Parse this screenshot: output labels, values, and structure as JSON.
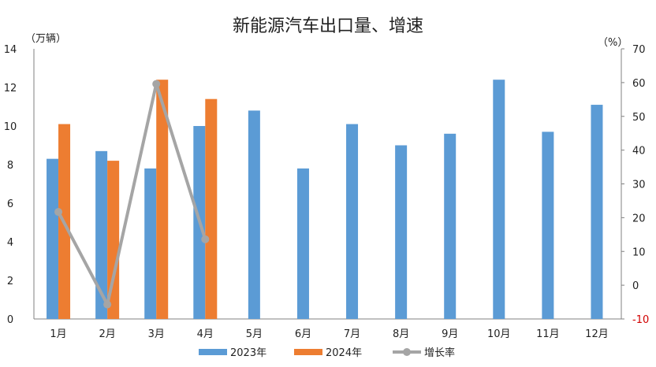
{
  "chart_data": {
    "type": "bar",
    "title": "新能源汽车出口量、增速",
    "y_left_unit": "（万辆）",
    "y_right_unit": "（%）",
    "categories": [
      "1月",
      "2月",
      "3月",
      "4月",
      "5月",
      "6月",
      "7月",
      "8月",
      "9月",
      "10月",
      "11月",
      "12月"
    ],
    "series": [
      {
        "name": "2023年",
        "type": "bar",
        "axis": "left",
        "color": "#5b9bd5",
        "values": [
          8.3,
          8.7,
          7.8,
          10.0,
          10.8,
          7.8,
          10.1,
          9.0,
          9.6,
          12.4,
          9.7,
          11.1
        ]
      },
      {
        "name": "2024年",
        "type": "bar",
        "axis": "left",
        "color": "#ed7d31",
        "values": [
          10.1,
          8.2,
          12.4,
          11.4,
          null,
          null,
          null,
          null,
          null,
          null,
          null,
          null
        ]
      },
      {
        "name": "增长率",
        "type": "line",
        "axis": "right",
        "color": "#a5a5a5",
        "values": [
          21.7,
          -5.7,
          59.6,
          13.6,
          null,
          null,
          null,
          null,
          null,
          null,
          null,
          null
        ]
      }
    ],
    "y_left": {
      "min": 0,
      "max": 14,
      "ticks": [
        "0",
        "2",
        "4",
        "6",
        "8",
        "10",
        "12",
        "14"
      ]
    },
    "y_right": {
      "min": -10,
      "max": 70,
      "ticks": [
        "-10",
        "0",
        "10",
        "20",
        "30",
        "40",
        "50",
        "60",
        "70"
      ],
      "negative_color": "#d10000"
    },
    "grid": false,
    "legend_position": "bottom"
  }
}
